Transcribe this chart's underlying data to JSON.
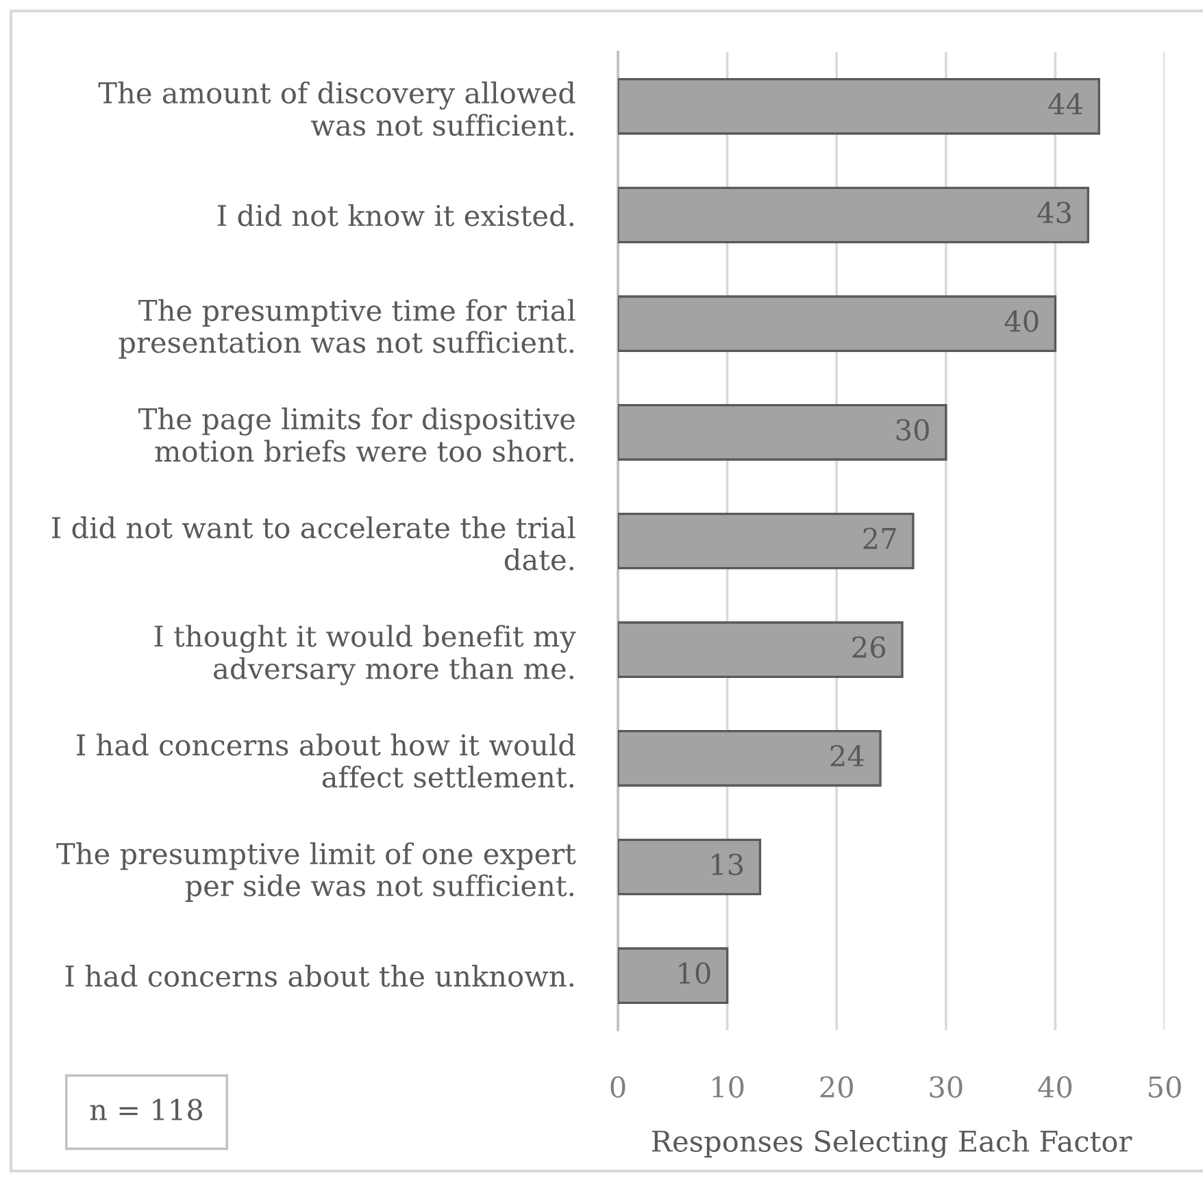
{
  "chart_data": {
    "type": "bar",
    "orientation": "horizontal",
    "categories": [
      "The amount of discovery allowed\nwas not sufficient.",
      "I did not know it existed.",
      "The presumptive time for trial\npresentation was not sufficient.",
      "The page limits for dispositive\nmotion briefs were too short.",
      "I did not want to accelerate the trial\ndate.",
      "I thought it would benefit my\nadversary more than me.",
      "I had concerns about how it would\naffect settlement.",
      "The presumptive limit of one expert\nper side was not sufficient.",
      "I had concerns about the unknown."
    ],
    "values": [
      44,
      43,
      40,
      30,
      27,
      26,
      24,
      13,
      10
    ],
    "color": "#a3a3a3",
    "xlabel": "Responses Selecting Each Factor",
    "xlim": [
      0,
      50
    ],
    "xticks": [
      0,
      10,
      20,
      30,
      40,
      50
    ],
    "grid": "x",
    "data_labels": true,
    "annotations": [
      "n = 118"
    ]
  }
}
